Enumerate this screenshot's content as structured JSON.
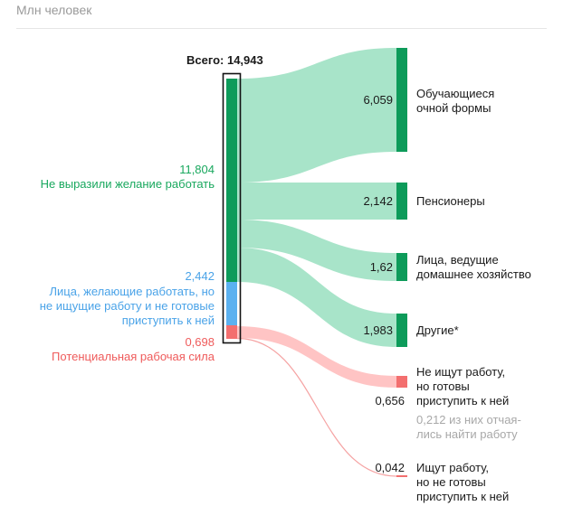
{
  "unit_label": "Млн человек",
  "total_label": "Всего: 14,943",
  "colors": {
    "green": "#0d9b5a",
    "green_flow": "#a8e4c9",
    "blue": "#5bb1f0",
    "red": "#f36f6f",
    "red_flow": "#ffc4c4",
    "text_green": "#19a85e",
    "text_blue": "#4aa3e8",
    "text_red": "#ef5b5b"
  },
  "sources": [
    {
      "value": "11,804",
      "label": "Не выразили желание работать",
      "color": "green"
    },
    {
      "value": "2,442",
      "label_lines": [
        "Лица, желающие работать, но",
        "не ищущие работу и не готовые",
        "приступить к ней"
      ],
      "color": "blue"
    },
    {
      "value": "0,698",
      "label": "Потенциальная рабочая сила",
      "color": "red"
    }
  ],
  "targets": [
    {
      "value": "6,059",
      "label_lines": [
        "Обучающиеся",
        "очной формы"
      ]
    },
    {
      "value": "2,142",
      "label_lines": [
        "Пенсионеры"
      ]
    },
    {
      "value": "1,62",
      "label_lines": [
        "Лица, ведущие",
        "домашнее хозяйство"
      ]
    },
    {
      "value": "1,983",
      "label_lines": [
        "Другие*"
      ]
    },
    {
      "value": "0,656",
      "label_lines": [
        "Не ищут работу,",
        "но готовы",
        "приступить к ней"
      ],
      "note_lines": [
        "0,212 из них отчая-",
        "лись найти работу"
      ]
    },
    {
      "value": "0,042",
      "label_lines": [
        "Ищут работу,",
        "но не готовы",
        "приступить к ней"
      ]
    }
  ]
}
